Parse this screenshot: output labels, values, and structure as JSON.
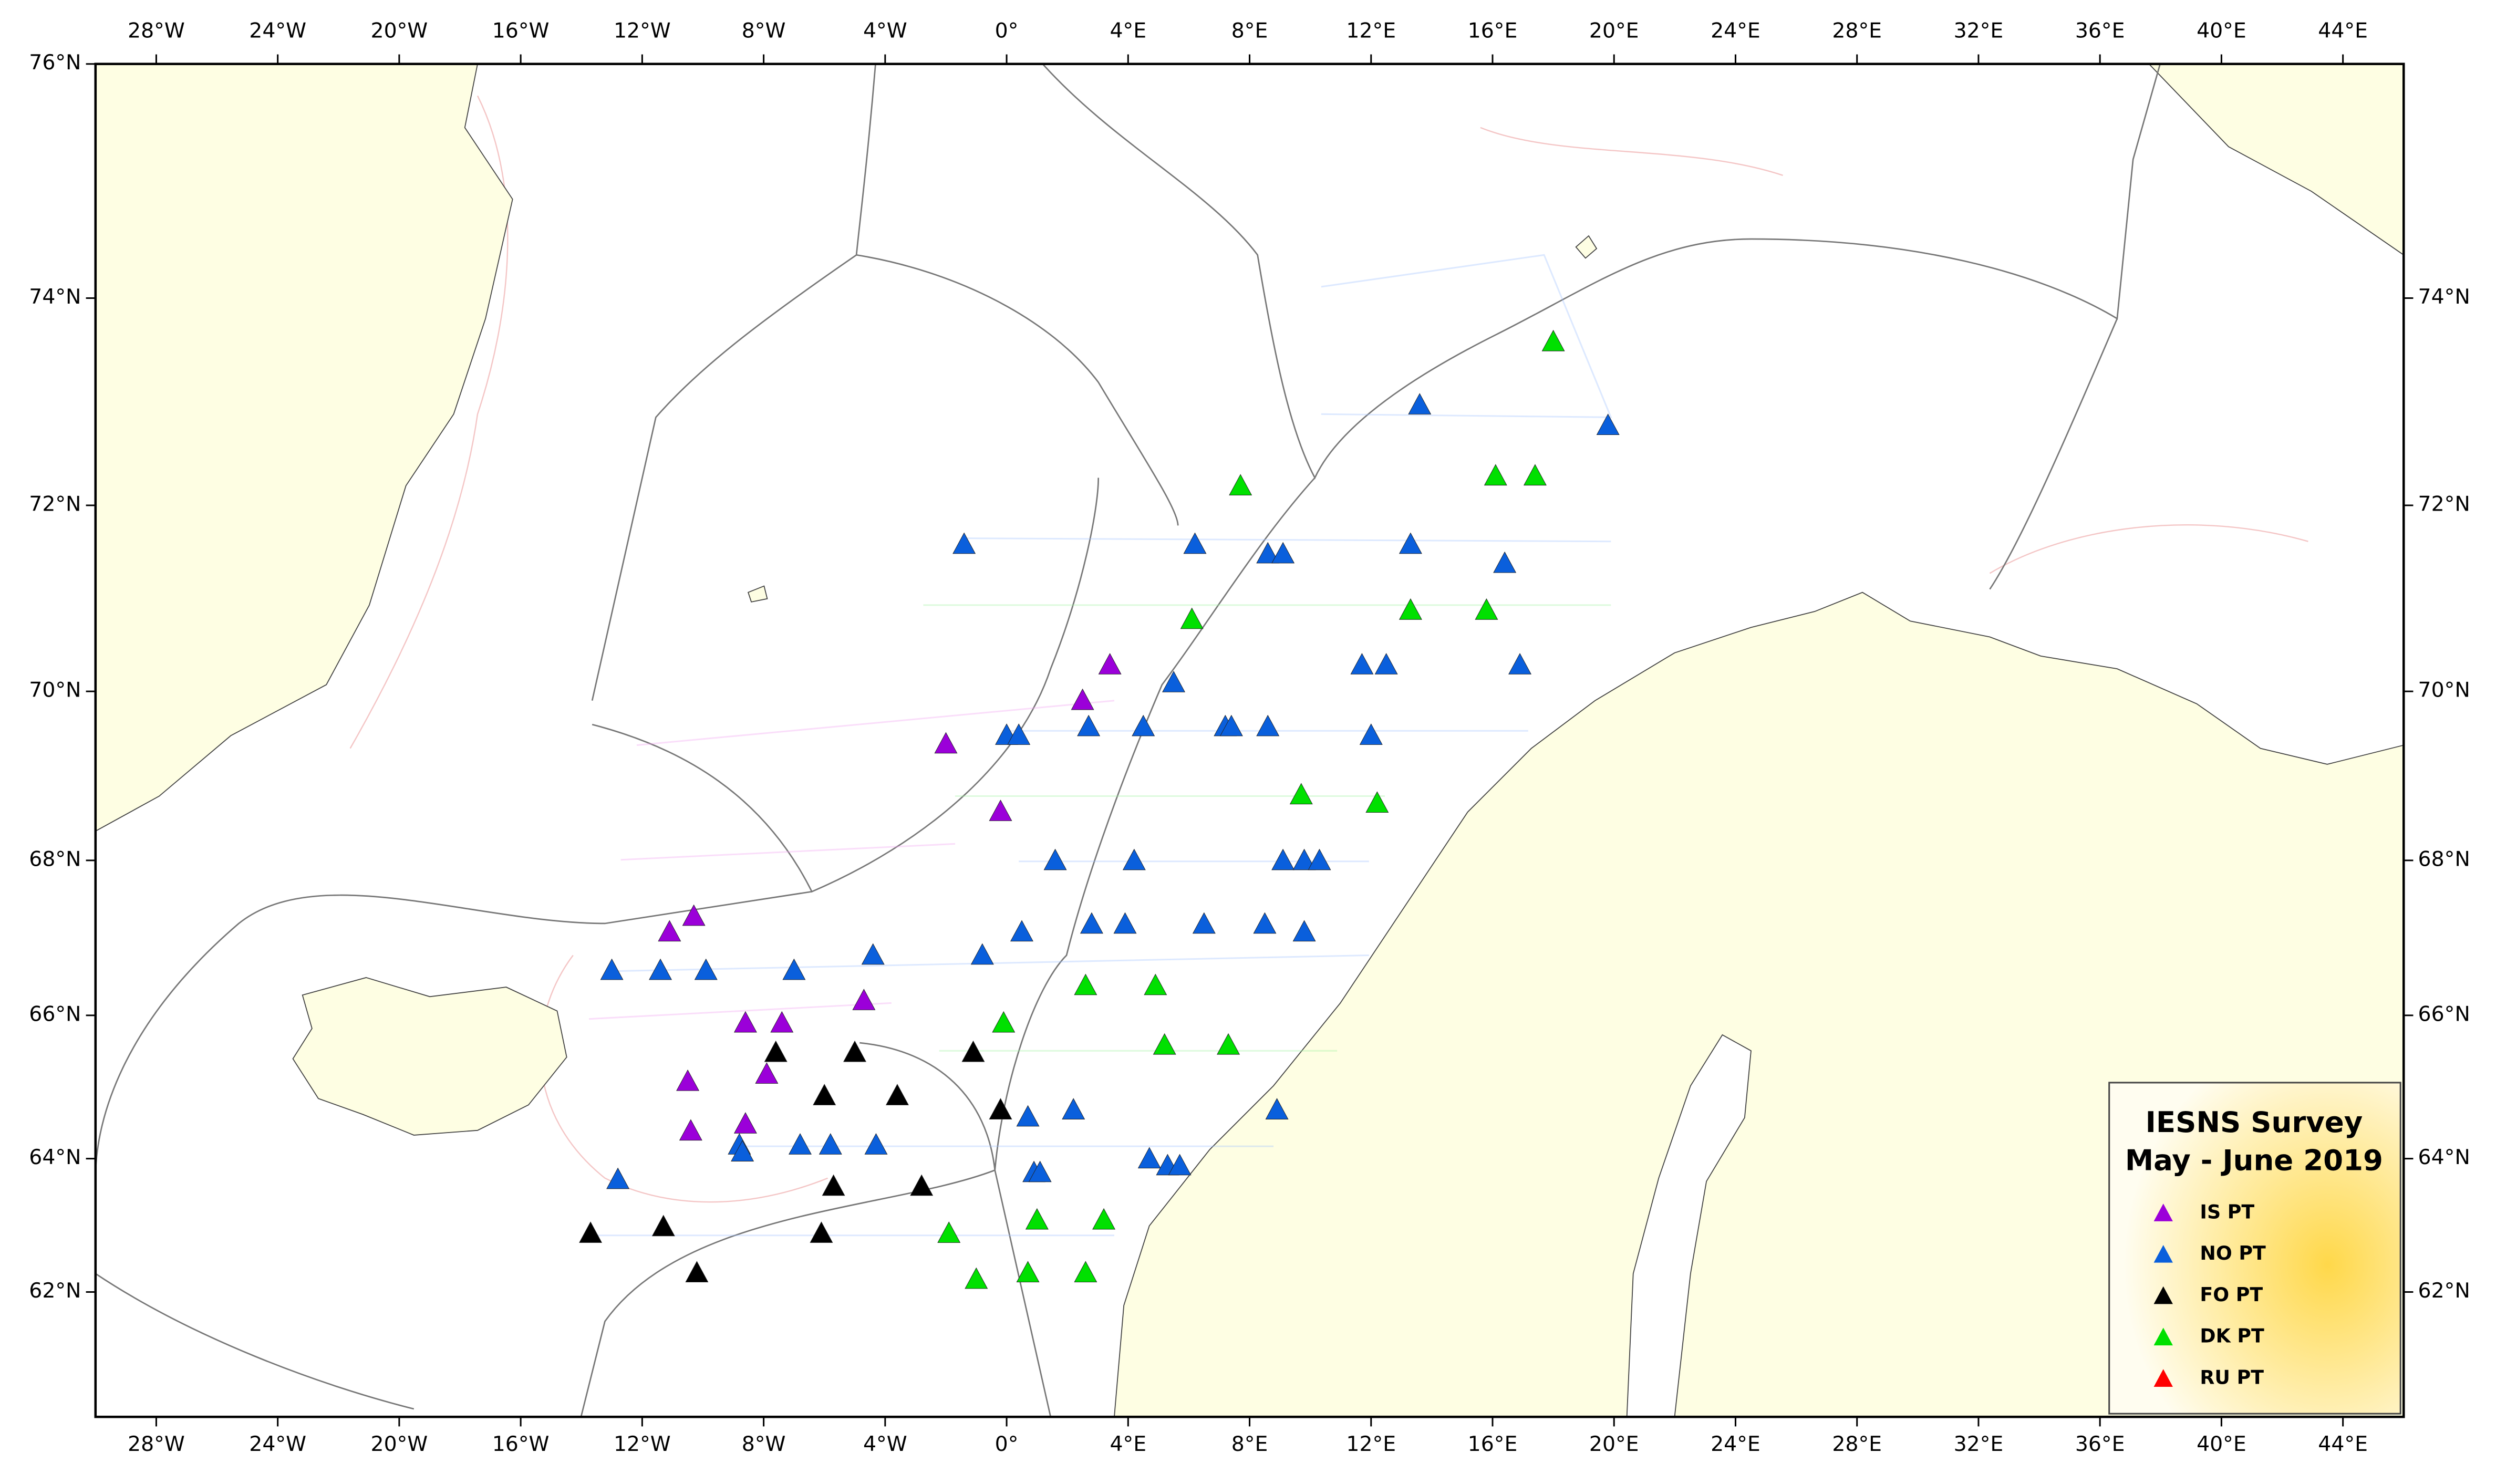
{
  "chart_data": {
    "type": "scatter",
    "projection": "mercator",
    "title": "IESNS Survey",
    "subtitle": "May - June 2019",
    "xlim": [
      -30,
      46
    ],
    "ylim": [
      60,
      76
    ],
    "y2lim": [
      60,
      76
    ],
    "xticks": [
      {
        "value": -28,
        "label": "28°W"
      },
      {
        "value": -24,
        "label": "24°W"
      },
      {
        "value": -20,
        "label": "20°W"
      },
      {
        "value": -16,
        "label": "16°W"
      },
      {
        "value": -12,
        "label": "12°W"
      },
      {
        "value": -8,
        "label": "8°W"
      },
      {
        "value": -4,
        "label": "4°W"
      },
      {
        "value": 0,
        "label": "0°"
      },
      {
        "value": 4,
        "label": "4°E"
      },
      {
        "value": 8,
        "label": "8°E"
      },
      {
        "value": 12,
        "label": "12°E"
      },
      {
        "value": 16,
        "label": "16°E"
      },
      {
        "value": 20,
        "label": "20°E"
      },
      {
        "value": 24,
        "label": "24°E"
      },
      {
        "value": 28,
        "label": "28°E"
      },
      {
        "value": 32,
        "label": "32°E"
      },
      {
        "value": 36,
        "label": "36°E"
      },
      {
        "value": 40,
        "label": "40°E"
      },
      {
        "value": 44,
        "label": "44°E"
      }
    ],
    "yticks": [
      {
        "value": 62,
        "label": "62°N"
      },
      {
        "value": 64,
        "label": "64°N"
      },
      {
        "value": 66,
        "label": "66°N"
      },
      {
        "value": 68,
        "label": "68°N"
      },
      {
        "value": 70,
        "label": "70°N"
      },
      {
        "value": 72,
        "label": "72°N"
      },
      {
        "value": 74,
        "label": "74°N"
      },
      {
        "value": 76,
        "label": "76°N"
      }
    ],
    "y2ticks": [
      {
        "value": 62,
        "label": "62°N"
      },
      {
        "value": 64,
        "label": "64°N"
      },
      {
        "value": 66,
        "label": "66°N"
      },
      {
        "value": 68,
        "label": "68°N"
      },
      {
        "value": 70,
        "label": "70°N"
      },
      {
        "value": 72,
        "label": "72°N"
      },
      {
        "value": 74,
        "label": "74°N"
      }
    ],
    "series": [
      {
        "name": "IS PT",
        "color": "#9b00d9",
        "x": [
          -2.0,
          -0.2,
          2.5,
          3.4,
          -11.1,
          -10.3,
          -4.7,
          -8.6,
          -7.4,
          -10.5,
          -7.9,
          -10.4,
          -8.6
        ],
        "values": [
          69.4,
          68.6,
          69.9,
          70.3,
          67.1,
          67.3,
          66.2,
          65.9,
          65.9,
          65.1,
          65.2,
          64.4,
          64.5
        ]
      },
      {
        "name": "NO PT",
        "color": "#0a5fdc",
        "x": [
          -1.4,
          6.2,
          8.6,
          9.1,
          13.3,
          16.4,
          0.0,
          0.4,
          2.7,
          4.5,
          5.5,
          7.2,
          7.4,
          8.6,
          11.7,
          12.5,
          16.9,
          12.0,
          13.6,
          19.8,
          1.6,
          4.2,
          9.1,
          9.8,
          10.3,
          0.5,
          2.8,
          3.9,
          6.5,
          8.5,
          9.8,
          -4.4,
          -0.8,
          -7.0,
          -9.9,
          -11.4,
          -13.0,
          -8.8,
          -8.7,
          -6.8,
          -5.8,
          -4.3,
          0.7,
          2.2,
          0.9,
          1.1,
          8.9,
          4.7,
          5.3,
          5.7,
          -12.8
        ],
        "values": [
          71.6,
          71.6,
          71.5,
          71.5,
          71.6,
          71.4,
          69.5,
          69.5,
          69.6,
          69.6,
          70.1,
          69.6,
          69.6,
          69.6,
          70.3,
          70.3,
          70.3,
          69.5,
          73.0,
          72.8,
          68.0,
          68.0,
          68.0,
          68.0,
          68.0,
          67.1,
          67.2,
          67.2,
          67.2,
          67.2,
          67.1,
          66.8,
          66.8,
          66.6,
          66.6,
          66.6,
          66.6,
          64.2,
          64.1,
          64.2,
          64.2,
          64.2,
          64.6,
          64.7,
          63.8,
          63.8,
          64.7,
          64.0,
          63.9,
          63.9,
          63.7
        ]
      },
      {
        "name": "FO PT",
        "color": "#000000",
        "x": [
          -7.6,
          -5.0,
          -1.1,
          -6.0,
          -3.6,
          -0.2,
          -5.7,
          -2.8,
          -13.7,
          -11.3,
          -6.1,
          -10.2
        ],
        "values": [
          65.5,
          65.5,
          65.5,
          64.9,
          64.9,
          64.7,
          63.6,
          63.6,
          62.9,
          63.0,
          62.9,
          62.3
        ]
      },
      {
        "name": "DK PT",
        "color": "#00e000",
        "x": [
          18.0,
          7.7,
          16.1,
          17.4,
          6.1,
          13.3,
          15.8,
          9.7,
          12.2,
          -0.1,
          2.6,
          4.9,
          5.2,
          7.3,
          -1.9,
          1.0,
          3.2,
          -1.0,
          0.7,
          2.6
        ],
        "values": [
          73.6,
          72.2,
          72.3,
          72.3,
          70.8,
          70.9,
          70.9,
          68.8,
          68.7,
          65.9,
          66.4,
          66.4,
          65.6,
          65.6,
          62.9,
          63.1,
          63.1,
          62.2,
          62.3,
          62.3
        ]
      },
      {
        "name": "RU PT",
        "color": "#ff0000",
        "x": [],
        "values": []
      }
    ]
  }
}
